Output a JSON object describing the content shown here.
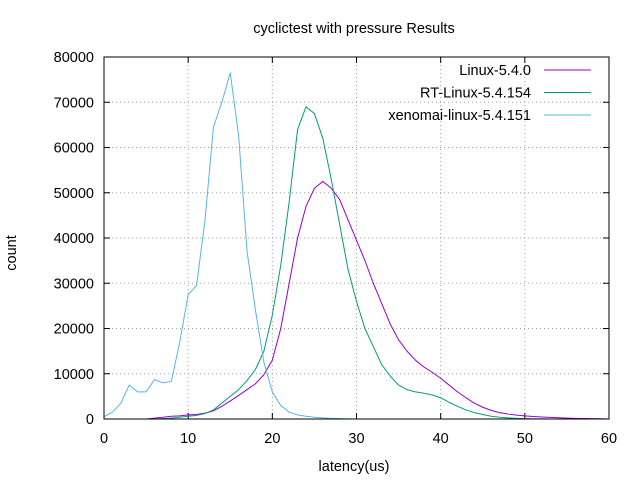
{
  "chart_data": {
    "type": "line",
    "title": "cyclictest with pressure Results",
    "xlabel": "latency(us)",
    "ylabel": "count",
    "xlim": [
      0,
      60
    ],
    "ylim": [
      0,
      80000
    ],
    "x_ticks": [
      "0",
      "10",
      "20",
      "30",
      "40",
      "50",
      "60"
    ],
    "y_ticks": [
      "0",
      "10000",
      "20000",
      "30000",
      "40000",
      "50000",
      "60000",
      "70000",
      "80000"
    ],
    "grid": true,
    "legend_position": "top-right",
    "series": [
      {
        "name": "Linux-5.4.0",
        "color": "#9400d3",
        "x": [
          0,
          1,
          2,
          3,
          4,
          5,
          6,
          7,
          8,
          9,
          10,
          11,
          12,
          13,
          14,
          15,
          16,
          17,
          18,
          19,
          20,
          21,
          22,
          23,
          24,
          25,
          26,
          27,
          28,
          29,
          30,
          31,
          32,
          33,
          34,
          35,
          36,
          37,
          38,
          39,
          40,
          41,
          42,
          43,
          44,
          45,
          46,
          47,
          48,
          49,
          50,
          51,
          52,
          53,
          54,
          55,
          56,
          57,
          58,
          59,
          60
        ],
        "y": [
          0,
          0,
          0,
          0,
          0,
          0,
          200,
          400,
          600,
          700,
          900,
          1000,
          1300,
          1800,
          2800,
          4000,
          5200,
          6500,
          7800,
          9800,
          13000,
          20000,
          30000,
          40000,
          47000,
          51000,
          52500,
          51000,
          48500,
          44000,
          39500,
          35000,
          30000,
          25500,
          21000,
          17500,
          15000,
          13000,
          11500,
          10300,
          9000,
          7500,
          6000,
          4700,
          3500,
          2600,
          1900,
          1400,
          1100,
          850,
          700,
          550,
          450,
          350,
          270,
          200,
          150,
          100,
          80,
          50,
          0
        ]
      },
      {
        "name": "RT-Linux-5.4.154",
        "color": "#009e73",
        "x": [
          0,
          1,
          2,
          3,
          4,
          5,
          6,
          7,
          8,
          9,
          10,
          11,
          12,
          13,
          14,
          15,
          16,
          17,
          18,
          19,
          20,
          21,
          22,
          23,
          24,
          25,
          26,
          27,
          28,
          29,
          30,
          31,
          32,
          33,
          34,
          35,
          36,
          37,
          38,
          39,
          40,
          41,
          42,
          43,
          44,
          45,
          46,
          47,
          48,
          49,
          50,
          51,
          52,
          53,
          54,
          55,
          56,
          57,
          58,
          59,
          60
        ],
        "y": [
          0,
          0,
          0,
          0,
          0,
          0,
          0,
          100,
          200,
          400,
          600,
          800,
          1200,
          2000,
          3500,
          5000,
          6500,
          8500,
          11000,
          15000,
          23000,
          34000,
          48000,
          64000,
          69000,
          67500,
          62000,
          53000,
          43000,
          33000,
          26000,
          20000,
          16000,
          12000,
          9500,
          7500,
          6500,
          6000,
          5700,
          5300,
          4700,
          3700,
          2800,
          2000,
          1400,
          1000,
          600,
          400,
          250,
          150,
          80,
          40,
          20,
          10,
          0,
          0,
          0,
          0,
          0,
          0,
          0
        ]
      },
      {
        "name": "xenomai-linux-5.4.151",
        "color": "#56b4e9",
        "x": [
          0,
          1,
          2,
          3,
          4,
          5,
          6,
          7,
          8,
          9,
          10,
          11,
          12,
          13,
          14,
          15,
          16,
          17,
          18,
          19,
          20,
          21,
          22,
          23,
          24,
          25,
          26,
          27,
          28,
          29,
          30
        ],
        "y": [
          500,
          1500,
          3500,
          7500,
          6000,
          6000,
          8700,
          8000,
          8300,
          17000,
          27500,
          29500,
          44000,
          64500,
          70000,
          76500,
          62500,
          37000,
          24000,
          12500,
          6000,
          3000,
          1500,
          900,
          600,
          400,
          250,
          150,
          80,
          40,
          0
        ]
      }
    ]
  }
}
